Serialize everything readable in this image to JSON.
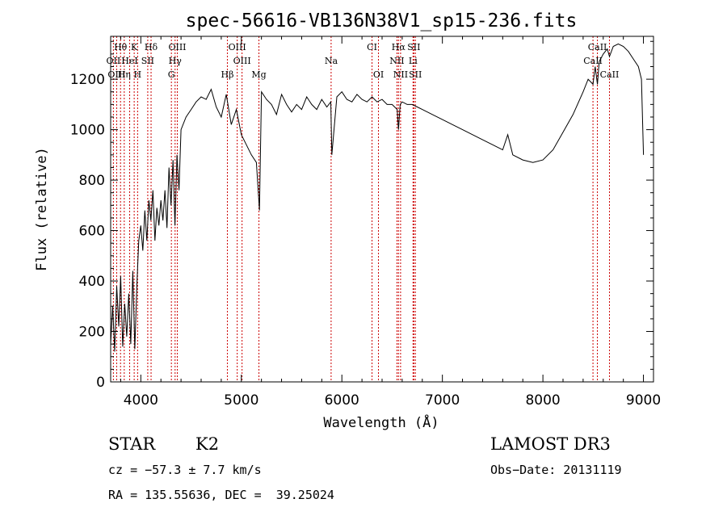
{
  "chart_data": {
    "type": "line",
    "title": "spec-56616-VB136N38V1_sp15-236.fits",
    "xlabel": "Wavelength (Å)",
    "ylabel": "Flux (relative)",
    "xlim": [
      3700,
      9100
    ],
    "ylim": [
      0,
      1370
    ],
    "x_ticks": [
      {
        "value": 4000,
        "label": "4000"
      },
      {
        "value": 5000,
        "label": "5000"
      },
      {
        "value": 6000,
        "label": "6000"
      },
      {
        "value": 7000,
        "label": "7000"
      },
      {
        "value": 8000,
        "label": "8000"
      },
      {
        "value": 9000,
        "label": "9000"
      }
    ],
    "y_ticks": [
      {
        "value": 0,
        "label": "0"
      },
      {
        "value": 200,
        "label": "200"
      },
      {
        "value": 400,
        "label": "400"
      },
      {
        "value": 600,
        "label": "600"
      },
      {
        "value": 800,
        "label": "800"
      },
      {
        "value": 1000,
        "label": "1000"
      },
      {
        "value": 1200,
        "label": "1200"
      }
    ],
    "series": [
      {
        "name": "spectrum",
        "x": [
          3700,
          3720,
          3740,
          3760,
          3780,
          3800,
          3820,
          3840,
          3860,
          3880,
          3900,
          3920,
          3940,
          3960,
          3980,
          4000,
          4020,
          4040,
          4060,
          4080,
          4100,
          4120,
          4140,
          4160,
          4180,
          4200,
          4220,
          4240,
          4260,
          4280,
          4300,
          4320,
          4340,
          4360,
          4380,
          4400,
          4450,
          4500,
          4550,
          4600,
          4650,
          4700,
          4750,
          4800,
          4850,
          4900,
          4950,
          5000,
          5050,
          5100,
          5150,
          5180,
          5200,
          5250,
          5300,
          5350,
          5400,
          5450,
          5500,
          5550,
          5600,
          5650,
          5700,
          5750,
          5800,
          5850,
          5890,
          5900,
          5950,
          6000,
          6050,
          6100,
          6150,
          6200,
          6250,
          6300,
          6350,
          6400,
          6450,
          6500,
          6550,
          6563,
          6580,
          6600,
          6650,
          6700,
          6750,
          6800,
          6900,
          7000,
          7100,
          7200,
          7300,
          7400,
          7500,
          7600,
          7650,
          7700,
          7800,
          7900,
          8000,
          8100,
          8200,
          8300,
          8400,
          8450,
          8498,
          8520,
          8542,
          8560,
          8600,
          8640,
          8662,
          8700,
          8750,
          8800,
          8850,
          8900,
          8950,
          8980,
          9000
        ],
        "values": [
          150,
          300,
          120,
          380,
          220,
          420,
          140,
          310,
          180,
          350,
          150,
          440,
          130,
          380,
          560,
          620,
          520,
          680,
          560,
          720,
          640,
          760,
          560,
          690,
          620,
          720,
          640,
          760,
          610,
          850,
          700,
          880,
          620,
          900,
          760,
          1000,
          1050,
          1080,
          1110,
          1130,
          1120,
          1160,
          1090,
          1050,
          1140,
          1020,
          1080,
          980,
          940,
          900,
          870,
          680,
          1150,
          1120,
          1100,
          1060,
          1140,
          1100,
          1070,
          1100,
          1080,
          1130,
          1100,
          1080,
          1120,
          1090,
          1110,
          900,
          1130,
          1150,
          1120,
          1110,
          1140,
          1120,
          1110,
          1130,
          1110,
          1120,
          1100,
          1100,
          1080,
          1000,
          1100,
          1110,
          1100,
          1100,
          1090,
          1080,
          1060,
          1040,
          1020,
          1000,
          980,
          960,
          940,
          920,
          980,
          900,
          880,
          870,
          880,
          920,
          990,
          1060,
          1150,
          1200,
          1180,
          1250,
          1180,
          1270,
          1300,
          1320,
          1290,
          1330,
          1340,
          1330,
          1310,
          1280,
          1250,
          1200,
          900
        ]
      }
    ],
    "lines": [
      {
        "label": "Hθ",
        "wavelength": 3798,
        "row": 0
      },
      {
        "label": "K",
        "wavelength": 3934,
        "row": 0
      },
      {
        "label": "Hδ",
        "wavelength": 4102,
        "row": 0
      },
      {
        "label": "OIII",
        "wavelength": 4363,
        "row": 0
      },
      {
        "label": "OIII",
        "wavelength": 4959,
        "row": 0
      },
      {
        "label": "CI",
        "wavelength": 6300,
        "row": 0
      },
      {
        "label": "Hα",
        "wavelength": 6563,
        "row": 0
      },
      {
        "label": "SII",
        "wavelength": 6716,
        "row": 0
      },
      {
        "label": "CaII",
        "wavelength": 8542,
        "row": 0
      },
      {
        "label": "OII",
        "wavelength": 3727,
        "row": 1
      },
      {
        "label": "HeI",
        "wavelength": 3889,
        "row": 1
      },
      {
        "label": "SII",
        "wavelength": 4069,
        "row": 1
      },
      {
        "label": "Hγ",
        "wavelength": 4341,
        "row": 1
      },
      {
        "label": "OIII",
        "wavelength": 5007,
        "row": 1
      },
      {
        "label": "Na",
        "wavelength": 5893,
        "row": 1
      },
      {
        "label": "NII",
        "wavelength": 6548,
        "row": 1
      },
      {
        "label": "Li",
        "wavelength": 6708,
        "row": 1
      },
      {
        "label": "CaII",
        "wavelength": 8498,
        "row": 1
      },
      {
        "label": "OIII",
        "wavelength": 3760,
        "row": 2
      },
      {
        "label": "Hη",
        "wavelength": 3835,
        "row": 2
      },
      {
        "label": "H",
        "wavelength": 3968,
        "row": 2
      },
      {
        "label": "G",
        "wavelength": 4304,
        "row": 2
      },
      {
        "label": "Hβ",
        "wavelength": 4861,
        "row": 2
      },
      {
        "label": "Mg",
        "wavelength": 5175,
        "row": 2
      },
      {
        "label": "OI",
        "wavelength": 6364,
        "row": 2
      },
      {
        "label": "NII",
        "wavelength": 6584,
        "row": 2
      },
      {
        "label": "SII",
        "wavelength": 6731,
        "row": 2
      },
      {
        "label": "CaII",
        "wavelength": 8662,
        "row": 2
      }
    ]
  },
  "info": {
    "class_label": "STAR",
    "subclass": "K2",
    "survey": "LAMOST DR3",
    "cz": "cz = −57.3 ± 7.7 km/s",
    "obs_date": "Obs−Date: 20131119",
    "coords": "RA = 135.55636, DEC =  39.25024"
  }
}
